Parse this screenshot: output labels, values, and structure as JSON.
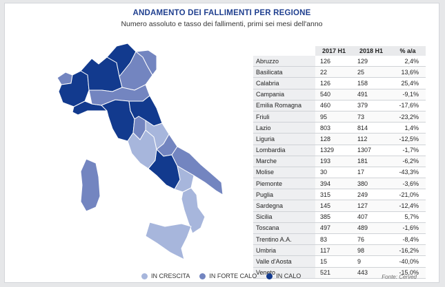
{
  "title": "ANDAMENTO DEI FALLIMENTI PER REGIONE",
  "subtitle": "Numero assoluto e tasso dei fallimenti, primi sei mesi dell'anno",
  "source": "Fonte: Cerved",
  "colors": {
    "in_crescita": "#a7b6dc",
    "in_forte_calo": "#7385c0",
    "in_calo": "#123a8e"
  },
  "legend": [
    {
      "key": "in_crescita",
      "label": "IN CRESCITA",
      "color": "#a7b6dc"
    },
    {
      "key": "in_forte_calo",
      "label": "IN FORTE CALO",
      "color": "#7385c0"
    },
    {
      "key": "in_calo",
      "label": "IN CALO",
      "color": "#123a8e"
    }
  ],
  "chart_data": {
    "type": "table",
    "columns": [
      "",
      "2017 H1",
      "2018 H1",
      "% a/a"
    ],
    "rows": [
      {
        "region": "Abruzzo",
        "h1_2017": 126,
        "h1_2018": 129,
        "pct": "2,4%",
        "category": "in_crescita"
      },
      {
        "region": "Basilicata",
        "h1_2017": 22,
        "h1_2018": 25,
        "pct": "13,6%",
        "category": "in_crescita"
      },
      {
        "region": "Calabria",
        "h1_2017": 126,
        "h1_2018": 158,
        "pct": "25,4%",
        "category": "in_crescita"
      },
      {
        "region": "Campania",
        "h1_2017": 540,
        "h1_2018": 491,
        "pct": "-9,1%",
        "category": "in_calo"
      },
      {
        "region": "Emilia Romagna",
        "h1_2017": 460,
        "h1_2018": 379,
        "pct": "-17,6%",
        "category": "in_forte_calo"
      },
      {
        "region": "Friuli",
        "h1_2017": 95,
        "h1_2018": 73,
        "pct": "-23,2%",
        "category": "in_forte_calo"
      },
      {
        "region": "Lazio",
        "h1_2017": 803,
        "h1_2018": 814,
        "pct": "1,4%",
        "category": "in_crescita"
      },
      {
        "region": "Liguria",
        "h1_2017": 128,
        "h1_2018": 112,
        "pct": "-12,5%",
        "category": "in_calo"
      },
      {
        "region": "Lombardia",
        "h1_2017": 1329,
        "h1_2018": 1307,
        "pct": "-1,7%",
        "category": "in_calo"
      },
      {
        "region": "Marche",
        "h1_2017": 193,
        "h1_2018": 181,
        "pct": "-6,2%",
        "category": "in_calo"
      },
      {
        "region": "Molise",
        "h1_2017": 30,
        "h1_2018": 17,
        "pct": "-43,3%",
        "category": "in_forte_calo"
      },
      {
        "region": "Piemonte",
        "h1_2017": 394,
        "h1_2018": 380,
        "pct": "-3,6%",
        "category": "in_calo"
      },
      {
        "region": "Puglia",
        "h1_2017": 315,
        "h1_2018": 249,
        "pct": "-21,0%",
        "category": "in_forte_calo"
      },
      {
        "region": "Sardegna",
        "h1_2017": 145,
        "h1_2018": 127,
        "pct": "-12,4%",
        "category": "in_forte_calo"
      },
      {
        "region": "Sicilia",
        "h1_2017": 385,
        "h1_2018": 407,
        "pct": "5,7%",
        "category": "in_crescita"
      },
      {
        "region": "Toscana",
        "h1_2017": 497,
        "h1_2018": 489,
        "pct": "-1,6%",
        "category": "in_calo"
      },
      {
        "region": "Trentino A.A.",
        "h1_2017": 83,
        "h1_2018": 76,
        "pct": "-8,4%",
        "category": "in_calo"
      },
      {
        "region": "Umbria",
        "h1_2017": 117,
        "h1_2018": 98,
        "pct": "-16,2%",
        "category": "in_forte_calo"
      },
      {
        "region": "Valle d'Aosta",
        "h1_2017": 15,
        "h1_2018": 9,
        "pct": "-40,0%",
        "category": "in_forte_calo"
      },
      {
        "region": "Veneto",
        "h1_2017": 521,
        "h1_2018": 443,
        "pct": "-15,0%",
        "category": "in_forte_calo"
      }
    ]
  }
}
